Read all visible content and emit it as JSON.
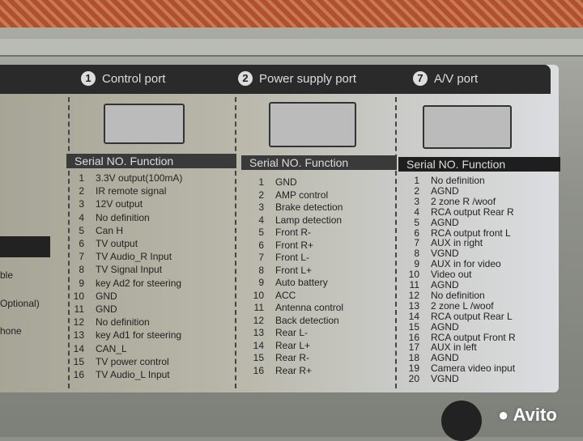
{
  "ports": [
    {
      "number": "1",
      "title": "Control port",
      "header": "Serial NO.  Function",
      "rows": [
        [
          "1",
          "3.3V output(100mA)"
        ],
        [
          "2",
          "IR remote signal"
        ],
        [
          "3",
          "12V output"
        ],
        [
          "4",
          "No definition"
        ],
        [
          "5",
          "Can H"
        ],
        [
          "6",
          "TV output"
        ],
        [
          "7",
          "TV Audio_R Input"
        ],
        [
          "8",
          "TV Signal Input"
        ],
        [
          "9",
          "key Ad2 for steering"
        ],
        [
          "10",
          "GND"
        ],
        [
          "11",
          "GND"
        ],
        [
          "12",
          "No definition"
        ],
        [
          "13",
          "key Ad1 for steering"
        ],
        [
          "14",
          "CAN_L"
        ],
        [
          "15",
          "TV power control"
        ],
        [
          "16",
          "TV Audio_L Input"
        ]
      ]
    },
    {
      "number": "2",
      "title": "Power supply port",
      "header": "Serial NO.  Function",
      "rows": [
        [
          "1",
          "GND"
        ],
        [
          "2",
          "AMP control"
        ],
        [
          "3",
          "Brake detection"
        ],
        [
          "4",
          "Lamp detection"
        ],
        [
          "5",
          "Front R-"
        ],
        [
          "6",
          "Front R+"
        ],
        [
          "7",
          "Front L-"
        ],
        [
          "8",
          "Front L+"
        ],
        [
          "9",
          "Auto battery"
        ],
        [
          "10",
          "ACC"
        ],
        [
          "11",
          "Antenna control"
        ],
        [
          "12",
          "Back detection"
        ],
        [
          "13",
          "Rear L-"
        ],
        [
          "14",
          "Rear L+"
        ],
        [
          "15",
          "Rear R-"
        ],
        [
          "16",
          "Rear R+"
        ]
      ]
    },
    {
      "number": "7",
      "title": "A/V port",
      "header": "Serial NO.  Function",
      "rows": [
        [
          "1",
          "No definition"
        ],
        [
          "2",
          "AGND"
        ],
        [
          "3",
          "2 zone R /woof"
        ],
        [
          "4",
          "RCA output Rear R"
        ],
        [
          "5",
          "AGND"
        ],
        [
          "6",
          "RCA output front L"
        ],
        [
          "7",
          "AUX in right"
        ],
        [
          "8",
          "VGND"
        ],
        [
          "9",
          "AUX in for video"
        ],
        [
          "10",
          "Video out"
        ],
        [
          "11",
          "AGND"
        ],
        [
          "12",
          "No definition"
        ],
        [
          "13",
          "2 zone L /woof"
        ],
        [
          "14",
          "RCA output Rear L"
        ],
        [
          "15",
          "AGND"
        ],
        [
          "16",
          "RCA output Front R"
        ],
        [
          "17",
          "AUX in left"
        ],
        [
          "18",
          "AGND"
        ],
        [
          "19",
          "Camera video input"
        ],
        [
          "20",
          "VGND"
        ]
      ]
    }
  ],
  "left_fragments": [
    "ble",
    "Optional)",
    "hone"
  ],
  "watermark": "Avito"
}
